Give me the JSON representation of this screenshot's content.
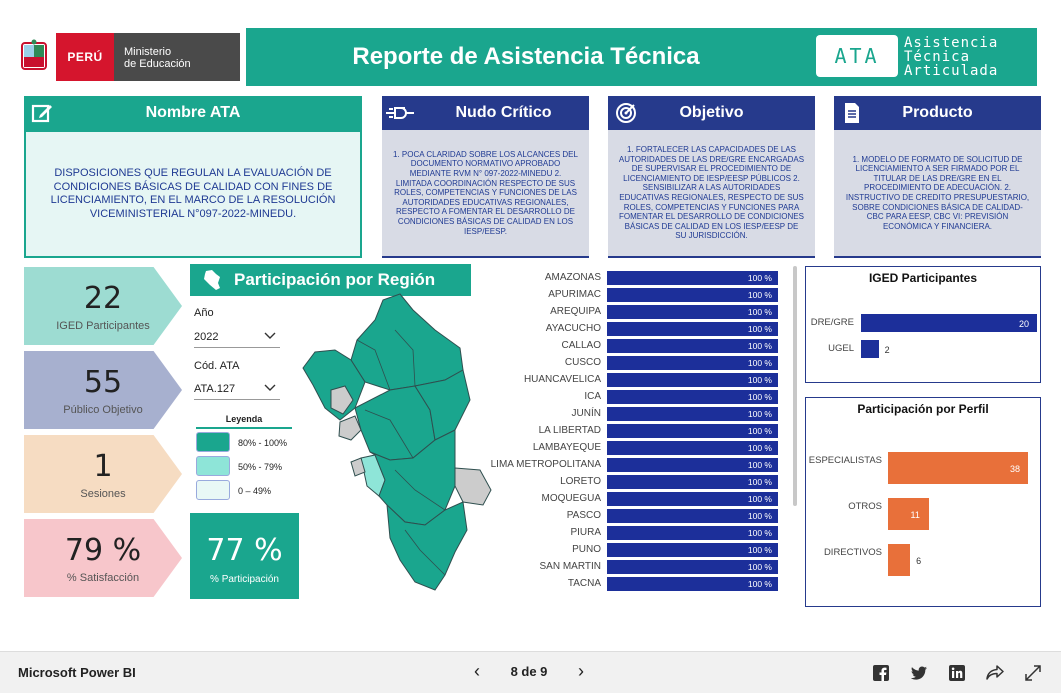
{
  "header": {
    "logo_country": "PERÚ",
    "logo_ministry_line1": "Ministerio",
    "logo_ministry_line2": "de Educación",
    "title": "Reporte de Asistencia Técnica",
    "badge": "ATA",
    "badge_words": [
      "Asistencia",
      "Técnica",
      "Articulada"
    ]
  },
  "cards": {
    "nombre": {
      "title": "Nombre ATA",
      "icon": "edit-icon",
      "text": "DISPOSICIONES QUE REGULAN LA EVALUACIÓN DE CONDICIONES BÁSICAS DE CALIDAD CON FINES DE LICENCIAMIENTO, EN EL MARCO DE LA RESOLUCIÓN VICEMINISTERIAL N°097-2022-MINEDU."
    },
    "nudo": {
      "title": "Nudo Crítico",
      "icon": "connector-icon",
      "text": "1. POCA CLARIDAD SOBRE LOS ALCANCES DEL DOCUMENTO NORMATIVO APROBADO MEDIANTE RVM N° 097-2022-MINEDU 2. LIMITADA COORDINACIÓN RESPECTO DE SUS ROLES, COMPETENCIAS Y FUNCIONES DE LAS AUTORIDADES EDUCATIVAS REGIONALES, RESPECTO A FOMENTAR EL DESARROLLO DE CONDICIONES BÁSICAS DE CALIDAD EN LOS IESP/EESP."
    },
    "objetivo": {
      "title": "Objetivo",
      "icon": "target-icon",
      "text": "1. FORTALECER LAS CAPACIDADES DE LAS AUTORIDADES DE LAS DRE/GRE ENCARGADAS DE SUPERVISAR EL PROCEDIMIENTO DE LICENCIAMIENTO DE IESP/EESP PÚBLICOS 2. SENSIBILIZAR A LAS AUTORIDADES EDUCATIVAS REGIONALES, RESPECTO DE SUS ROLES, COMPETENCIAS Y FUNCIONES PARA FOMENTAR EL DESARROLLO DE CONDICIONES BÁSICAS DE CALIDAD EN LOS IESP/EESP DE SU JURISDICCIÓN."
    },
    "producto": {
      "title": "Producto",
      "icon": "document-icon",
      "text": "1. MODELO DE FORMATO DE SOLICITUD DE LICENCIAMIENTO A SER FIRMADO POR EL TITULAR DE LAS DRE/GRE EN EL PROCEDIMIENTO DE ADECUACIÓN. 2. INSTRUCTIVO DE CREDITO PRESUPUESTARIO, SOBRE CONDICIONES BÁSICA DE CALIDAD-CBC PARA EESP, CBC VI: PREVISIÓN ECONÓMICA Y FINANCIERA."
    }
  },
  "kpis": [
    {
      "value": "22",
      "label": "IGED Participantes",
      "color": "#9ddcd2"
    },
    {
      "value": "55",
      "label": "Público Objetivo",
      "color": "#a7b0cf"
    },
    {
      "value": "1",
      "label": "Sesiones",
      "color": "#f6dcc2"
    },
    {
      "value": "79 %",
      "label": "% Satisfacción",
      "color": "#f7c6cb"
    }
  ],
  "region": {
    "title": "Participación por Región",
    "filters": {
      "year_label": "Año",
      "year_value": "2022",
      "code_label": "Cód. ATA",
      "code_value": "ATA.127"
    },
    "legend": {
      "title": "Leyenda",
      "items": [
        {
          "label": "80% - 100%",
          "color": "#1aa68e"
        },
        {
          "label": "50% - 79%",
          "color": "#8ee5d8"
        },
        {
          "label": "0 – 49%",
          "color": "#e9f8f6"
        }
      ]
    },
    "participation_value": "77 %",
    "participation_label": "% Participación"
  },
  "chart_data": [
    {
      "type": "bar",
      "orientation": "horizontal",
      "categories": [
        "AMAZONAS",
        "APURIMAC",
        "AREQUIPA",
        "AYACUCHO",
        "CALLAO",
        "CUSCO",
        "HUANCAVELICA",
        "ICA",
        "JUNÍN",
        "LA LIBERTAD",
        "LAMBAYEQUE",
        "LIMA METROPOLITANA",
        "LORETO",
        "MOQUEGUA",
        "PASCO",
        "PIURA",
        "PUNO",
        "SAN MARTIN",
        "TACNA"
      ],
      "values": [
        100,
        100,
        100,
        100,
        100,
        100,
        100,
        100,
        100,
        100,
        100,
        100,
        100,
        100,
        100,
        100,
        100,
        100,
        100
      ],
      "data_labels": [
        "100 %",
        "100 %",
        "100 %",
        "100 %",
        "100 %",
        "100 %",
        "100 %",
        "100 %",
        "100 %",
        "100 %",
        "100 %",
        "100 %",
        "100 %",
        "100 %",
        "100 %",
        "100 %",
        "100 %",
        "100 %",
        "100 %"
      ],
      "xlim": [
        0,
        100
      ],
      "color": "#1c2f9a"
    },
    {
      "type": "bar",
      "orientation": "horizontal",
      "title": "IGED Participantes",
      "categories": [
        "DRE/GRE",
        "UGEL"
      ],
      "values": [
        20,
        2
      ],
      "xlim": [
        0,
        20
      ],
      "color": "#1c2f9a"
    },
    {
      "type": "bar",
      "orientation": "horizontal",
      "title": "Participación por Perfil",
      "categories": [
        "ESPECIALISTAS",
        "OTROS",
        "DIRECTIVOS"
      ],
      "values": [
        38,
        11,
        6
      ],
      "xlim": [
        0,
        38
      ],
      "color": "#e8703a"
    }
  ],
  "footer": {
    "brand": "Microsoft Power BI",
    "page_indicator": "8 de 9",
    "prev": "‹",
    "next": "›"
  }
}
